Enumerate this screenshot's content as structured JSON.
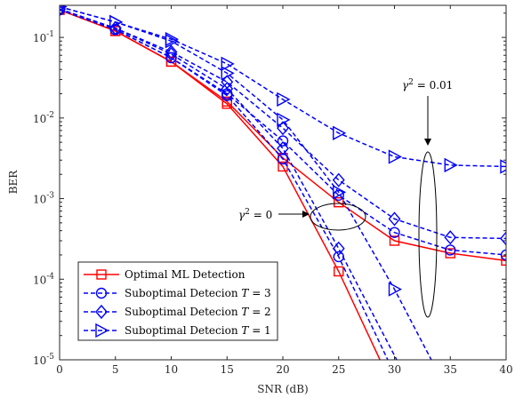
{
  "chart_data": {
    "type": "line",
    "xlabel": "SNR (dB)",
    "ylabel": "BER",
    "xlim": [
      0,
      40
    ],
    "ylim": [
      1e-05,
      0.25
    ],
    "yscale": "log",
    "grid": false,
    "legend_position": "bottom-left",
    "x_ticks": [
      "0",
      "5",
      "10",
      "15",
      "20",
      "25",
      "30",
      "35",
      "40"
    ],
    "y_ticks": [
      {
        "base": "10",
        "exp": "-1"
      },
      {
        "base": "10",
        "exp": "-2"
      },
      {
        "base": "10",
        "exp": "-3"
      },
      {
        "base": "10",
        "exp": "-4"
      },
      {
        "base": "10",
        "exp": "-5"
      }
    ],
    "legend": [
      {
        "label": "Optimal ML Detection",
        "marker": "square",
        "color": "#ff0000",
        "dash": "solid"
      },
      {
        "label_prefix": "Suboptimal Detecion ",
        "label_var": "T",
        "label_suffix": " = 3",
        "marker": "circle",
        "color": "#0000ff",
        "dash": "dashed"
      },
      {
        "label_prefix": "Suboptimal Detecion ",
        "label_var": "T",
        "label_suffix": " = 2",
        "marker": "diamond",
        "color": "#0000ff",
        "dash": "dashed"
      },
      {
        "label_prefix": "Suboptimal Detecion ",
        "label_var": "T",
        "label_suffix": " = 1",
        "marker": "triangle-right",
        "color": "#0000ff",
        "dash": "dashed"
      }
    ],
    "annotations": [
      {
        "text_var": "γ",
        "text_sup": "2",
        "text_rest": " = 0.01"
      },
      {
        "text_var": "γ",
        "text_sup": "2",
        "text_rest": " = 0"
      }
    ],
    "series": [
      {
        "group": "γ² = 0.01",
        "marker": "square",
        "color": "#ff0000",
        "dash": "solid",
        "x": [
          0,
          5,
          10,
          15,
          20,
          25,
          30,
          35,
          40
        ],
        "y": [
          0.22,
          0.12,
          0.05,
          0.016,
          0.0032,
          0.0009,
          0.0003,
          0.00021,
          0.00017
        ]
      },
      {
        "group": "γ² = 0.01",
        "marker": "circle",
        "color": "#0000ff",
        "dash": "dashed",
        "x": [
          0,
          5,
          10,
          15,
          20,
          25,
          30,
          35,
          40
        ],
        "y": [
          0.22,
          0.125,
          0.056,
          0.02,
          0.0052,
          0.0011,
          0.00038,
          0.00023,
          0.0002
        ]
      },
      {
        "group": "γ² = 0.01",
        "marker": "diamond",
        "color": "#0000ff",
        "dash": "dashed",
        "x": [
          0,
          5,
          10,
          15,
          20,
          25,
          30,
          35,
          40
        ],
        "y": [
          0.225,
          0.13,
          0.066,
          0.028,
          0.0075,
          0.0017,
          0.00056,
          0.00033,
          0.00032
        ]
      },
      {
        "group": "γ² = 0.01",
        "marker": "triangle-right",
        "color": "#0000ff",
        "dash": "dashed",
        "x": [
          0,
          5,
          10,
          15,
          20,
          25,
          30,
          35,
          40
        ],
        "y": [
          0.24,
          0.155,
          0.095,
          0.047,
          0.017,
          0.0065,
          0.0033,
          0.0026,
          0.0025
        ]
      },
      {
        "group": "γ² = 0",
        "marker": "square",
        "color": "#ff0000",
        "dash": "solid",
        "x": [
          0,
          5,
          10,
          15,
          20,
          25,
          28.7
        ],
        "y": [
          0.22,
          0.12,
          0.05,
          0.015,
          0.0025,
          0.000125,
          1e-05
        ]
      },
      {
        "group": "γ² = 0",
        "marker": "circle",
        "color": "#0000ff",
        "dash": "dashed",
        "x": [
          0,
          5,
          10,
          15,
          20,
          25,
          29.4
        ],
        "y": [
          0.22,
          0.125,
          0.056,
          0.019,
          0.0031,
          0.00019,
          1e-05
        ]
      },
      {
        "group": "γ² = 0",
        "marker": "diamond",
        "color": "#0000ff",
        "dash": "dashed",
        "x": [
          0,
          5,
          10,
          15,
          20,
          25,
          30.2
        ],
        "y": [
          0.225,
          0.13,
          0.062,
          0.023,
          0.0042,
          0.00024,
          1e-05
        ]
      },
      {
        "group": "γ² = 0",
        "marker": "triangle-right",
        "color": "#0000ff",
        "dash": "dashed",
        "x": [
          0,
          5,
          10,
          15,
          20,
          25,
          30,
          33.3
        ],
        "y": [
          0.24,
          0.155,
          0.09,
          0.036,
          0.0095,
          0.0012,
          7.5e-05,
          1e-05
        ]
      }
    ]
  }
}
